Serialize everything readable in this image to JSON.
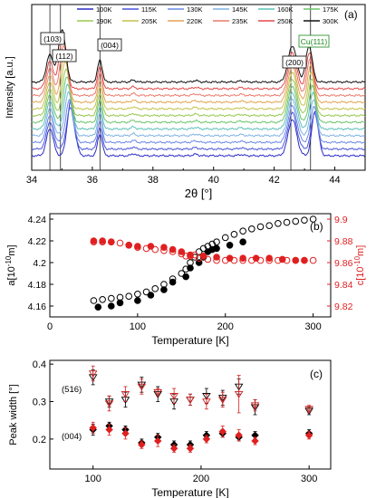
{
  "chart_data": [
    {
      "type": "line",
      "panel_label": "(a)",
      "xlabel": "2θ [°]",
      "ylabel": "Intensity [a.u.]",
      "xlim": [
        34,
        45
      ],
      "x_ticks": [
        34,
        36,
        38,
        40,
        42,
        44
      ],
      "legend": [
        "100K",
        "115K",
        "130K",
        "145K",
        "160K",
        "175K",
        "190K",
        "205K",
        "220K",
        "235K",
        "250K",
        "300K"
      ],
      "peak_labels": [
        "(103)",
        "(112)",
        "(004)",
        "(200)",
        "Cu(111)"
      ],
      "peaks": [
        {
          "label": "(103)",
          "x_low_T": 34.6,
          "x_high_T": 34.6
        },
        {
          "label": "(112)",
          "x_low_T": 35.3,
          "x_high_T": 35.0
        },
        {
          "label": "(004)",
          "x_low_T": 36.25,
          "x_high_T": 36.25
        },
        {
          "label": "(200)",
          "x_low_T": 42.6,
          "x_high_T": 42.6
        },
        {
          "label": "Cu(111)",
          "x_low_T": 43.35,
          "x_high_T": 43.15
        }
      ],
      "series_colors": [
        "#2c2cc8",
        "#4a55d8",
        "#6a88e8",
        "#7fb2e6",
        "#5ec0b8",
        "#6cc36c",
        "#98c850",
        "#c4c24a",
        "#e2a452",
        "#ec7a6c",
        "#e24848",
        "#111111"
      ]
    },
    {
      "type": "scatter",
      "panel_label": "(b)",
      "xlabel": "Temperature [K]",
      "ylabel_left": "a[10",
      "ylabel_left_exp": "-10",
      "ylabel_left_unit": "m]",
      "ylabel_right": "c[10",
      "ylabel_right_exp": "-10",
      "ylabel_right_unit": "m]",
      "xlim": [
        0,
        320
      ],
      "x_ticks": [
        0,
        100,
        200,
        300
      ],
      "ylim_left": [
        4.15,
        4.245
      ],
      "y_ticks_left": [
        4.16,
        4.18,
        4.2,
        4.22,
        4.24
      ],
      "ylim_right": [
        9.81,
        9.905
      ],
      "y_ticks_right": [
        9.82,
        9.84,
        9.86,
        9.88,
        9.9
      ],
      "series": [
        {
          "axis": "left",
          "marker": "open",
          "color": "#000000",
          "x": [
            50,
            60,
            70,
            80,
            90,
            100,
            110,
            120,
            130,
            140,
            150,
            155,
            160,
            165,
            170,
            175,
            180,
            185,
            190,
            200,
            210,
            220,
            230,
            240,
            250,
            260,
            270,
            280,
            290,
            300
          ],
          "y": [
            4.165,
            4.166,
            4.167,
            4.168,
            4.169,
            4.171,
            4.173,
            4.176,
            4.18,
            4.185,
            4.19,
            4.194,
            4.2,
            4.205,
            4.21,
            4.213,
            4.215,
            4.217,
            4.219,
            4.223,
            4.226,
            4.229,
            4.231,
            4.233,
            4.234,
            4.236,
            4.237,
            4.238,
            4.239,
            4.24
          ]
        },
        {
          "axis": "left",
          "marker": "filled",
          "color": "#000000",
          "x": [
            55,
            70,
            80,
            100,
            115,
            130,
            140,
            155,
            160,
            170,
            175,
            180,
            185,
            190,
            205,
            220
          ],
          "y": [
            4.159,
            4.16,
            4.163,
            4.165,
            4.17,
            4.175,
            4.182,
            4.187,
            4.195,
            4.2,
            4.205,
            4.21,
            4.212,
            4.213,
            4.216,
            4.219
          ]
        },
        {
          "axis": "right",
          "marker": "open",
          "color": "#e02020",
          "x": [
            50,
            60,
            70,
            80,
            90,
            100,
            110,
            120,
            130,
            140,
            150,
            155,
            160,
            165,
            170,
            180,
            190,
            200,
            210,
            220,
            230,
            240,
            250,
            260,
            270,
            280,
            290,
            300
          ],
          "y": [
            9.879,
            9.879,
            9.879,
            9.878,
            9.876,
            9.874,
            9.873,
            9.872,
            9.871,
            9.87,
            9.868,
            9.866,
            9.866,
            9.867,
            9.864,
            9.863,
            9.862,
            9.862,
            9.862,
            9.862,
            9.862,
            9.862,
            9.862,
            9.862,
            9.862,
            9.862,
            9.862,
            9.862
          ]
        },
        {
          "axis": "right",
          "marker": "filled",
          "color": "#e02020",
          "x": [
            50,
            60,
            70,
            90,
            100,
            115,
            130,
            140,
            150,
            160,
            175,
            190,
            205,
            220,
            235,
            250,
            265,
            280,
            290
          ],
          "y": [
            9.88,
            9.88,
            9.879,
            9.876,
            9.875,
            9.875,
            9.874,
            9.872,
            9.87,
            9.867,
            9.866,
            9.865,
            9.864,
            9.864,
            9.864,
            9.864,
            9.863,
            9.862,
            9.862
          ]
        }
      ]
    },
    {
      "type": "scatter",
      "panel_label": "(c)",
      "xlabel": "Temperature [K]",
      "ylabel": "Peak width [°]",
      "xlim": [
        60,
        320
      ],
      "x_ticks": [
        100,
        200,
        300
      ],
      "ylim": [
        0.12,
        0.41
      ],
      "y_ticks": [
        0.2,
        0.3,
        0.4
      ],
      "annotations": [
        "(516)",
        "(004)"
      ],
      "series": [
        {
          "label": "(516)",
          "marker": "open-triangle-down",
          "color": "#000000",
          "x": [
            100,
            115,
            130,
            145,
            160,
            175,
            190,
            205,
            220,
            235,
            250,
            300
          ],
          "y": [
            0.365,
            0.3,
            0.305,
            0.345,
            0.32,
            0.3,
            0.305,
            0.315,
            0.31,
            0.34,
            0.285,
            0.275
          ],
          "err": [
            0.02,
            0.015,
            0.02,
            0.02,
            0.02,
            0.02,
            0.015,
            0.02,
            0.02,
            0.02,
            0.02,
            0.01
          ]
        },
        {
          "label": "(516)",
          "marker": "open-triangle-down",
          "color": "#d02020",
          "x": [
            100,
            115,
            130,
            145,
            160,
            175,
            190,
            205,
            220,
            235,
            250,
            300
          ],
          "y": [
            0.375,
            0.295,
            0.32,
            0.34,
            0.325,
            0.315,
            0.305,
            0.3,
            0.305,
            0.32,
            0.29,
            0.28
          ],
          "err": [
            0.02,
            0.02,
            0.02,
            0.02,
            0.01,
            0.02,
            0.015,
            0.02,
            0.02,
            0.05,
            0.015,
            0.01
          ]
        },
        {
          "label": "(004)",
          "marker": "filled-diamond",
          "color": "#000000",
          "x": [
            100,
            115,
            130,
            145,
            160,
            175,
            190,
            205,
            220,
            235,
            250,
            300
          ],
          "y": [
            0.225,
            0.235,
            0.225,
            0.19,
            0.205,
            0.185,
            0.185,
            0.21,
            0.215,
            0.205,
            0.21,
            0.215
          ],
          "err": [
            0.015,
            0.01,
            0.01,
            0.01,
            0.01,
            0.01,
            0.01,
            0.01,
            0.01,
            0.01,
            0.01,
            0.01
          ]
        },
        {
          "label": "(004)",
          "marker": "filled-diamond",
          "color": "#e02020",
          "x": [
            100,
            115,
            130,
            145,
            160,
            175,
            190,
            205,
            220,
            235,
            250,
            300
          ],
          "y": [
            0.23,
            0.225,
            0.215,
            0.185,
            0.195,
            0.175,
            0.175,
            0.2,
            0.22,
            0.21,
            0.195,
            0.21
          ],
          "err": [
            0.015,
            0.015,
            0.015,
            0.01,
            0.015,
            0.01,
            0.01,
            0.01,
            0.015,
            0.015,
            0.01,
            0.01
          ]
        }
      ]
    }
  ]
}
